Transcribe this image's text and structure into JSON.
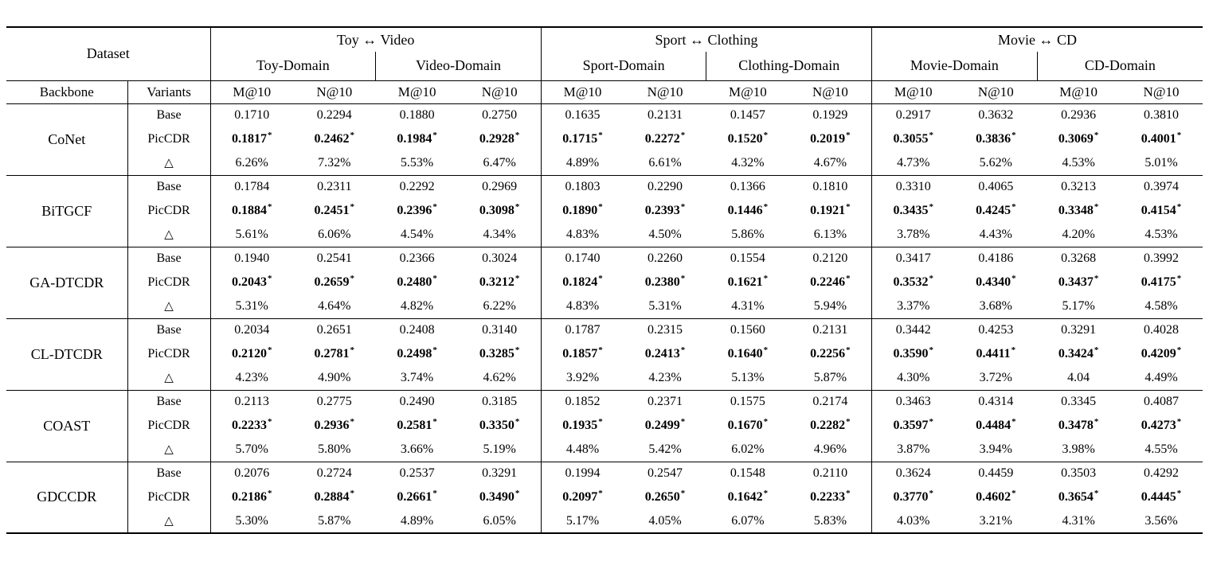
{
  "table": {
    "dataset_label": "Dataset",
    "backbone_label": "Backbone",
    "variants_label": "Variants",
    "significance_mark": "*",
    "metric_labels": [
      "M@10",
      "N@10"
    ],
    "variant_names": [
      "Base",
      "PicCDR",
      "△"
    ],
    "groups": [
      {
        "label": "Toy ↔ Video",
        "domains": [
          "Toy-Domain",
          "Video-Domain"
        ]
      },
      {
        "label": "Sport ↔ Clothing",
        "domains": [
          "Sport-Domain",
          "Clothing-Domain"
        ]
      },
      {
        "label": "Movie ↔ CD",
        "domains": [
          "Movie-Domain",
          "CD-Domain"
        ]
      }
    ],
    "rows": [
      {
        "backbone": "CoNet",
        "base": [
          "0.1710",
          "0.2294",
          "0.1880",
          "0.2750",
          "0.1635",
          "0.2131",
          "0.1457",
          "0.1929",
          "0.2917",
          "0.3632",
          "0.2936",
          "0.3810"
        ],
        "piccdr": [
          "0.1817",
          "0.2462",
          "0.1984",
          "0.2928",
          "0.1715",
          "0.2272",
          "0.1520",
          "0.2019",
          "0.3055",
          "0.3836",
          "0.3069",
          "0.4001"
        ],
        "delta": [
          "6.26%",
          "7.32%",
          "5.53%",
          "6.47%",
          "4.89%",
          "6.61%",
          "4.32%",
          "4.67%",
          "4.73%",
          "5.62%",
          "4.53%",
          "5.01%"
        ]
      },
      {
        "backbone": "BiTGCF",
        "base": [
          "0.1784",
          "0.2311",
          "0.2292",
          "0.2969",
          "0.1803",
          "0.2290",
          "0.1366",
          "0.1810",
          "0.3310",
          "0.4065",
          "0.3213",
          "0.3974"
        ],
        "piccdr": [
          "0.1884",
          "0.2451",
          "0.2396",
          "0.3098",
          "0.1890",
          "0.2393",
          "0.1446",
          "0.1921",
          "0.3435",
          "0.4245",
          "0.3348",
          "0.4154"
        ],
        "delta": [
          "5.61%",
          "6.06%",
          "4.54%",
          "4.34%",
          "4.83%",
          "4.50%",
          "5.86%",
          "6.13%",
          "3.78%",
          "4.43%",
          "4.20%",
          "4.53%"
        ]
      },
      {
        "backbone": "GA-DTCDR",
        "base": [
          "0.1940",
          "0.2541",
          "0.2366",
          "0.3024",
          "0.1740",
          "0.2260",
          "0.1554",
          "0.2120",
          "0.3417",
          "0.4186",
          "0.3268",
          "0.3992"
        ],
        "piccdr": [
          "0.2043",
          "0.2659",
          "0.2480",
          "0.3212",
          "0.1824",
          "0.2380",
          "0.1621",
          "0.2246",
          "0.3532",
          "0.4340",
          "0.3437",
          "0.4175"
        ],
        "delta": [
          "5.31%",
          "4.64%",
          "4.82%",
          "6.22%",
          "4.83%",
          "5.31%",
          "4.31%",
          "5.94%",
          "3.37%",
          "3.68%",
          "5.17%",
          "4.58%"
        ]
      },
      {
        "backbone": "CL-DTCDR",
        "base": [
          "0.2034",
          "0.2651",
          "0.2408",
          "0.3140",
          "0.1787",
          "0.2315",
          "0.1560",
          "0.2131",
          "0.3442",
          "0.4253",
          "0.3291",
          "0.4028"
        ],
        "piccdr": [
          "0.2120",
          "0.2781",
          "0.2498",
          "0.3285",
          "0.1857",
          "0.2413",
          "0.1640",
          "0.2256",
          "0.3590",
          "0.4411",
          "0.3424",
          "0.4209"
        ],
        "delta": [
          "4.23%",
          "4.90%",
          "3.74%",
          "4.62%",
          "3.92%",
          "4.23%",
          "5.13%",
          "5.87%",
          "4.30%",
          "3.72%",
          "4.04",
          "4.49%"
        ]
      },
      {
        "backbone": "COAST",
        "base": [
          "0.2113",
          "0.2775",
          "0.2490",
          "0.3185",
          "0.1852",
          "0.2371",
          "0.1575",
          "0.2174",
          "0.3463",
          "0.4314",
          "0.3345",
          "0.4087"
        ],
        "piccdr": [
          "0.2233",
          "0.2936",
          "0.2581",
          "0.3350",
          "0.1935",
          "0.2499",
          "0.1670",
          "0.2282",
          "0.3597",
          "0.4484",
          "0.3478",
          "0.4273"
        ],
        "delta": [
          "5.70%",
          "5.80%",
          "3.66%",
          "5.19%",
          "4.48%",
          "5.42%",
          "6.02%",
          "4.96%",
          "3.87%",
          "3.94%",
          "3.98%",
          "4.55%"
        ]
      },
      {
        "backbone": "GDCCDR",
        "base": [
          "0.2076",
          "0.2724",
          "0.2537",
          "0.3291",
          "0.1994",
          "0.2547",
          "0.1548",
          "0.2110",
          "0.3624",
          "0.4459",
          "0.3503",
          "0.4292"
        ],
        "piccdr": [
          "0.2186",
          "0.2884",
          "0.2661",
          "0.3490",
          "0.2097",
          "0.2650",
          "0.1642",
          "0.2233",
          "0.3770",
          "0.4602",
          "0.3654",
          "0.4445"
        ],
        "delta": [
          "5.30%",
          "5.87%",
          "4.89%",
          "6.05%",
          "5.17%",
          "4.05%",
          "6.07%",
          "5.83%",
          "4.03%",
          "3.21%",
          "4.31%",
          "3.56%"
        ]
      }
    ]
  }
}
